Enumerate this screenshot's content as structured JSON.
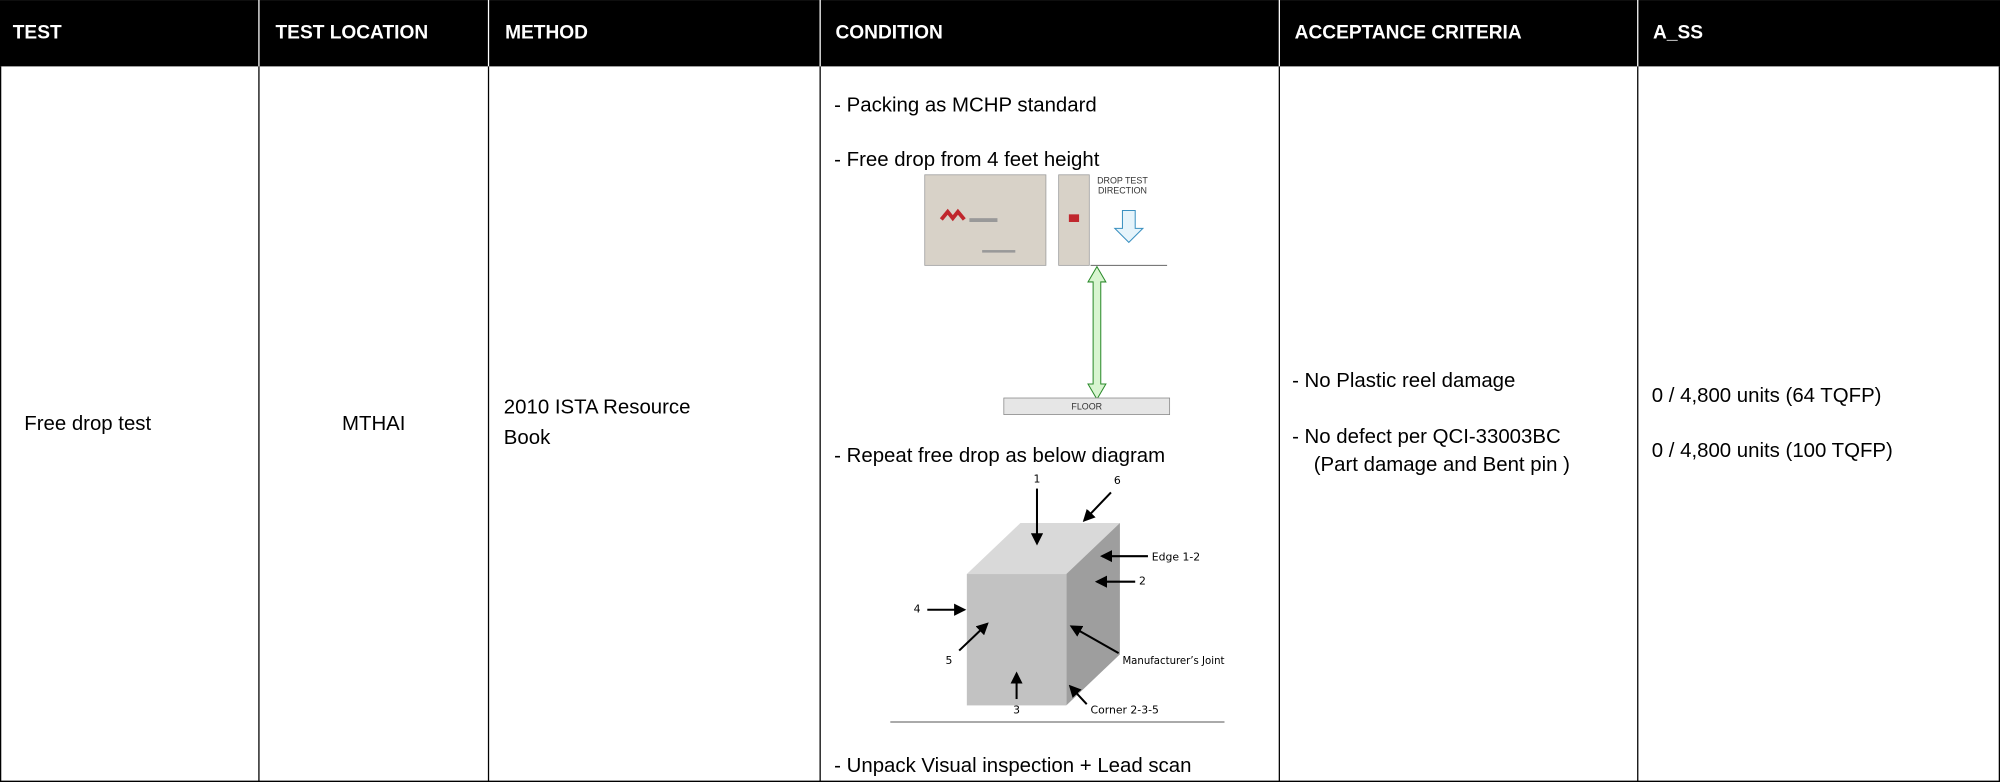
{
  "table": {
    "headers": [
      "TEST",
      "TEST LOCATION",
      "METHOD",
      "CONDITION",
      "ACCEPTANCE CRITERIA",
      "A_SS"
    ],
    "rows": [
      {
        "test": "Free drop test",
        "test_location": "MTHAI",
        "method": [
          "2010 ISTA Resource",
          "Book"
        ],
        "condition": {
          "lines": [
            "- Packing as MCHP standard",
            "- Free drop from 4 feet height",
            "- Repeat free drop as below diagram",
            "- Unpack Visual inspection + Lead scan"
          ],
          "drop_figure": {
            "direction_label": [
              "DROP TEST",
              "DIRECTION"
            ],
            "floor_label": "FLOOR"
          },
          "cube_figure": {
            "labels": [
              "1",
              "6",
              "Edge 1-2",
              "2",
              "4",
              "5",
              "Manufacturer’s Joint",
              "3",
              "Corner 2-3-5"
            ]
          }
        },
        "acceptance_criteria": [
          "- No Plastic reel damage",
          "- No defect per QCI-33003BC",
          "(Part damage and Bent pin )"
        ],
        "a_ss": [
          "0 / 4,800 units (64 TQFP)",
          "0 / 4,800 units (100 TQFP)"
        ]
      }
    ]
  }
}
